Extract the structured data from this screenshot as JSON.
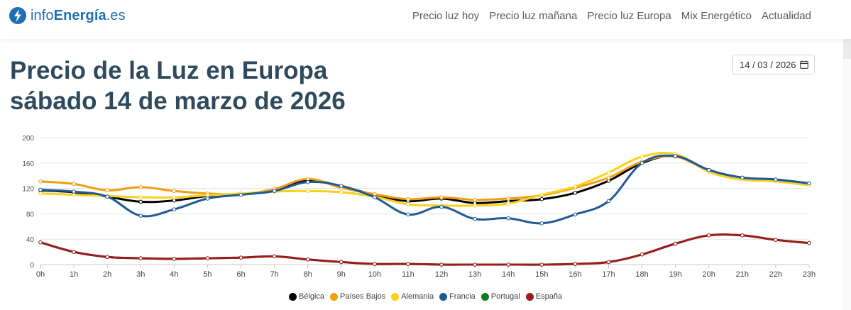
{
  "header": {
    "logo_prefix": "info",
    "logo_brand": "Energía",
    "logo_suffix": ".es",
    "nav": [
      "Precio luz hoy",
      "Precio luz mañana",
      "Precio luz Europa",
      "Mix Energético",
      "Actualidad"
    ]
  },
  "page": {
    "title_line1": "Precio de la Luz en Europa",
    "title_line2": "sábado 14 de marzo de 2026",
    "date_value": "14 / 03 / 2026"
  },
  "chart_data": {
    "type": "line",
    "title": "",
    "xlabel": "",
    "ylabel": "",
    "categories": [
      "0h",
      "1h",
      "2h",
      "3h",
      "4h",
      "5h",
      "6h",
      "7h",
      "8h",
      "9h",
      "10h",
      "11h",
      "12h",
      "13h",
      "14h",
      "15h",
      "16h",
      "17h",
      "18h",
      "19h",
      "20h",
      "21h",
      "22h",
      "23h"
    ],
    "ylim": [
      0,
      200
    ],
    "yticks": [
      0,
      40,
      80,
      120,
      160,
      200
    ],
    "series": [
      {
        "name": "Bélgica",
        "color": "#000000",
        "values": [
          117,
          114,
          107,
          99,
          101,
          108,
          111,
          116,
          133,
          123,
          110,
          100,
          104,
          97,
          100,
          103,
          113,
          132,
          160,
          171,
          149,
          137,
          134,
          128
        ]
      },
      {
        "name": "Países Bajos",
        "color": "#f39c12",
        "values": [
          131,
          127,
          117,
          122,
          116,
          112,
          111,
          119,
          135,
          121,
          111,
          103,
          106,
          102,
          104,
          109,
          121,
          137,
          162,
          170,
          148,
          136,
          133,
          127
        ]
      },
      {
        "name": "Alemania",
        "color": "#f8d11b",
        "values": [
          112,
          110,
          108,
          106,
          106,
          109,
          112,
          115,
          116,
          114,
          107,
          95,
          93,
          93,
          96,
          110,
          123,
          145,
          170,
          174,
          146,
          134,
          131,
          125
        ]
      },
      {
        "name": "Francia",
        "color": "#1f5a96",
        "values": [
          118,
          115,
          107,
          77,
          87,
          104,
          110,
          116,
          130,
          124,
          106,
          79,
          91,
          72,
          73,
          65,
          79,
          100,
          160,
          171,
          149,
          137,
          134,
          128
        ]
      },
      {
        "name": "Portugal",
        "color": "#137a1f",
        "values": [
          35,
          20,
          12,
          10,
          9,
          10,
          11,
          13,
          8,
          4,
          1,
          1,
          0,
          0,
          0,
          0,
          1,
          4,
          16,
          33,
          46,
          46,
          39,
          34
        ]
      },
      {
        "name": "España",
        "color": "#9b1c1c",
        "values": [
          35,
          20,
          12,
          10,
          9,
          10,
          11,
          13,
          8,
          4,
          1,
          1,
          0,
          0,
          0,
          0,
          1,
          4,
          16,
          33,
          46,
          46,
          39,
          34
        ]
      }
    ],
    "legend_position": "bottom-center"
  }
}
